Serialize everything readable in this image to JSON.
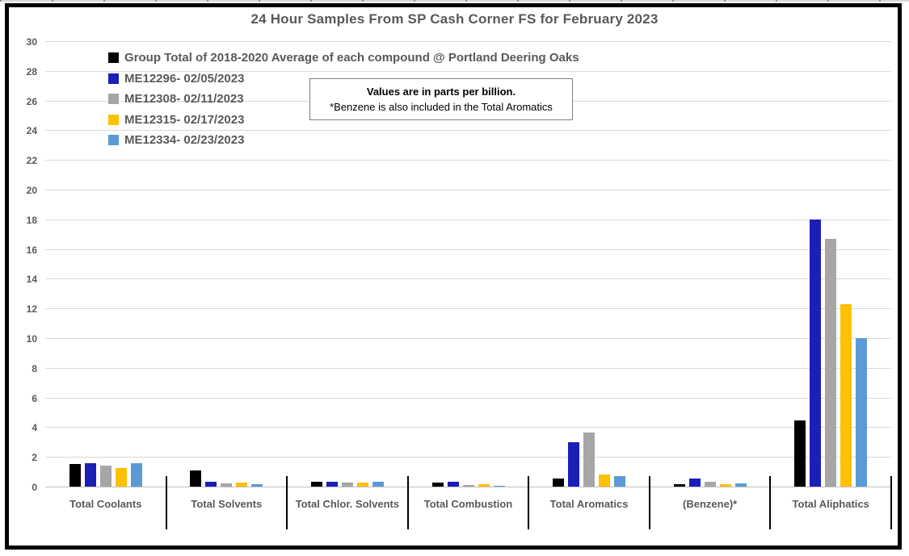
{
  "theme": {
    "text_color": "#595959",
    "gridline_color": "#D9D9D9",
    "axis_line_color": "#BFBFBF",
    "frame_border_color": "#000000",
    "annotation_border_color": "#7F7F7F",
    "background": "#ffffff"
  },
  "chart_data": {
    "type": "bar",
    "title": "24 Hour Samples From SP Cash Corner FS for February 2023",
    "categories": [
      "Total Coolants",
      "Total Solvents",
      "Total Chlor. Solvents",
      "Total Combustion",
      "Total Aromatics",
      "(Benzene)*",
      "Total Aliphatics"
    ],
    "series": [
      {
        "name": "Group Total of 2018-2020 Average of each compound @ Portland Deering Oaks",
        "color": "#000000",
        "values": [
          1.5,
          1.1,
          0.3,
          0.25,
          0.55,
          0.15,
          4.45
        ]
      },
      {
        "name": "ME12296- 02/05/2023",
        "color": "#1C1EB8",
        "values": [
          1.6,
          0.3,
          0.35,
          0.3,
          3.0,
          0.55,
          18.0
        ]
      },
      {
        "name": "ME12308- 02/11/2023",
        "color": "#A6A6A6",
        "values": [
          1.4,
          0.2,
          0.25,
          0.12,
          3.65,
          0.3,
          16.7
        ]
      },
      {
        "name": "ME12315- 02/17/2023",
        "color": "#FFC000",
        "values": [
          1.25,
          0.25,
          0.25,
          0.15,
          0.8,
          0.15,
          12.3
        ]
      },
      {
        "name": "ME12334- 02/23/2023",
        "color": "#5B9BD5",
        "values": [
          1.6,
          0.15,
          0.3,
          0.08,
          0.7,
          0.2,
          10.0
        ]
      }
    ],
    "ylim": [
      0,
      30
    ],
    "ytick_step": 2,
    "grid": true,
    "legend_position": "top-left-inside",
    "units_note": {
      "line1": "Values are in parts per billion.",
      "line2": "*Benzene is also included in the Total Aromatics"
    }
  }
}
